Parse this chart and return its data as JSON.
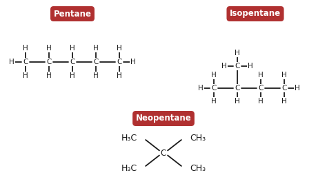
{
  "bg_color": "#ffffff",
  "label_color": "#ffffff",
  "box_color": "#b03030",
  "atom_color": "#1a1a1a",
  "bond_color": "#1a1a1a",
  "pentane_label": "Pentane",
  "isopentane_label": "Isopentane",
  "neopentane_label": "Neopentane",
  "fig_w": 4.74,
  "fig_h": 2.7,
  "dpi": 100
}
